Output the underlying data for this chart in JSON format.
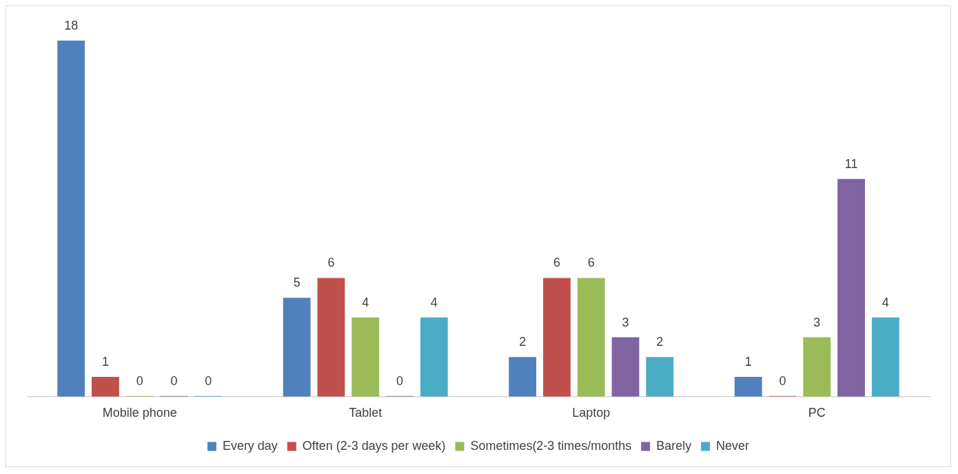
{
  "chart_data": {
    "type": "bar",
    "categories": [
      "Mobile phone",
      "Tablet",
      "Laptop",
      "PC"
    ],
    "series": [
      {
        "name": "Every day",
        "color": "#4f81bd",
        "values": [
          18,
          5,
          2,
          1
        ]
      },
      {
        "name": "Often (2-3 days per week)",
        "color": "#c0504d",
        "values": [
          1,
          6,
          6,
          0
        ]
      },
      {
        "name": "Sometimes(2-3 times/months",
        "color": "#9bbb59",
        "values": [
          0,
          4,
          6,
          3
        ]
      },
      {
        "name": "Barely",
        "color": "#8064a2",
        "values": [
          0,
          0,
          3,
          11
        ]
      },
      {
        "name": "Never",
        "color": "#4bacc6",
        "values": [
          0,
          4,
          2,
          4
        ]
      }
    ],
    "data_labels": true,
    "legend": "bottom",
    "grid": false
  }
}
